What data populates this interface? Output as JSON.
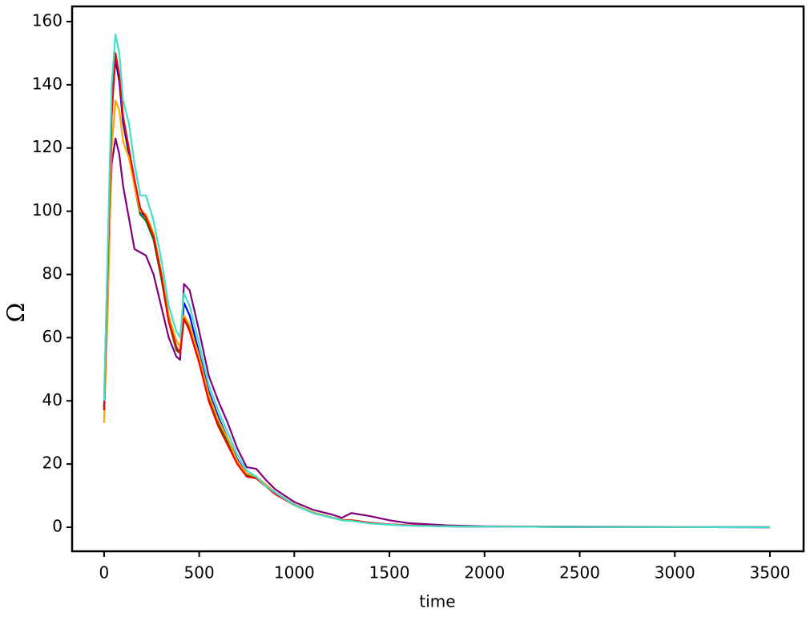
{
  "chart_data": {
    "type": "line",
    "xlabel": "time",
    "ylabel": "Ω",
    "x": [
      0,
      20,
      40,
      60,
      80,
      100,
      130,
      160,
      190,
      220,
      260,
      300,
      340,
      380,
      400,
      420,
      450,
      500,
      550,
      600,
      650,
      700,
      750,
      800,
      850,
      900,
      1000,
      1100,
      1200,
      1250,
      1300,
      1400,
      1500,
      1600,
      1800,
      2000,
      2500,
      3000,
      3500
    ],
    "series": [
      {
        "color": "#800080",
        "values": [
          37,
          80,
          115,
          123,
          118,
          108,
          98,
          88,
          87,
          86,
          80,
          70,
          60,
          54,
          53,
          77,
          75,
          62,
          48,
          40,
          33,
          25,
          19,
          18.5,
          15,
          12,
          8,
          5.5,
          4,
          3,
          4.5,
          3.5,
          2.2,
          1.3,
          0.6,
          0.3,
          0.2,
          0.1,
          0
        ]
      },
      {
        "color": "#008000",
        "values": [
          38,
          85,
          132,
          148,
          142,
          128,
          118,
          108,
          99,
          97,
          91,
          79,
          65,
          56,
          55,
          66,
          63,
          53,
          41,
          33,
          27,
          21,
          16.5,
          15.5,
          13,
          10.5,
          7,
          4.5,
          3,
          2.3,
          2.2,
          1.3,
          0.9,
          0.6,
          0.3,
          0.2,
          0.1,
          0.05,
          0
        ]
      },
      {
        "color": "#0000ff",
        "values": [
          38,
          88,
          135,
          148,
          141,
          128,
          119,
          109,
          100,
          98,
          92,
          80,
          66,
          57,
          55,
          71,
          67,
          55,
          43,
          35,
          28,
          21.5,
          17,
          16,
          13.5,
          11,
          7.2,
          4.6,
          3,
          2.3,
          2.2,
          1.3,
          0.9,
          0.6,
          0.3,
          0.2,
          0.1,
          0.05,
          0
        ]
      },
      {
        "color": "#ffa500",
        "values": [
          33,
          70,
          120,
          135,
          132,
          122,
          117,
          108,
          100,
          99,
          93,
          81,
          67,
          59,
          57,
          67,
          64,
          54,
          42,
          34,
          28,
          21,
          17,
          16,
          13.5,
          11,
          7.2,
          4.7,
          3.1,
          2.4,
          2.3,
          1.4,
          0.9,
          0.6,
          0.3,
          0.2,
          0.1,
          0.05,
          0
        ]
      },
      {
        "color": "#ff0000",
        "values": [
          37,
          85,
          130,
          150,
          143,
          130,
          120,
          110,
          101,
          98,
          92,
          80,
          65,
          57,
          55,
          66,
          62,
          52,
          40,
          32,
          26,
          20,
          16,
          15.5,
          13,
          10.5,
          7,
          4.5,
          3,
          2.3,
          2.2,
          1.4,
          0.9,
          0.6,
          0.3,
          0.2,
          0.1,
          0.05,
          0
        ]
      },
      {
        "color": "#40e0d0",
        "values": [
          40,
          90,
          140,
          156,
          150,
          135,
          128,
          115,
          105,
          105,
          97,
          85,
          70,
          62,
          60,
          74,
          70,
          58,
          45,
          37,
          30,
          23,
          18,
          16,
          13,
          11,
          7,
          4.5,
          3,
          2.2,
          2,
          1.2,
          0.8,
          0.5,
          0.3,
          0.2,
          0.1,
          0.05,
          0
        ]
      }
    ],
    "xlim": [
      -168,
      3677
    ],
    "ylim": [
      -7.6,
      164.8
    ],
    "xticks": [
      0,
      500,
      1000,
      1500,
      2000,
      2500,
      3000,
      3500
    ],
    "yticks": [
      0,
      20,
      40,
      60,
      80,
      100,
      120,
      140,
      160
    ]
  }
}
